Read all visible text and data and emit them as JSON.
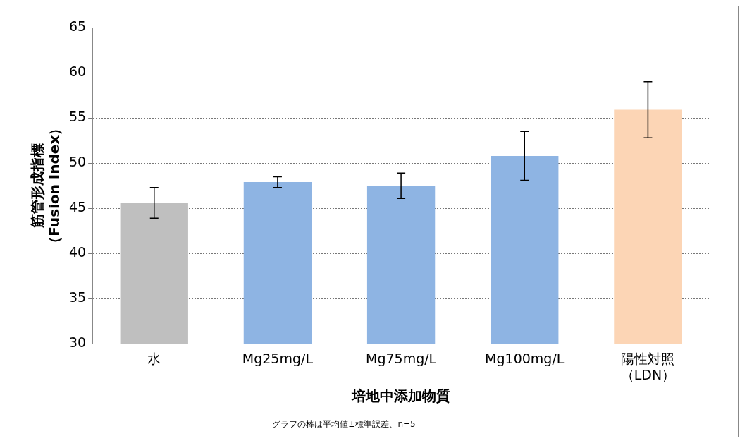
{
  "chart_data": {
    "type": "bar",
    "categories": [
      "水",
      "Mg25mg/L",
      "Mg75mg/L",
      "Mg100mg/L",
      "陽性対照（LDN）"
    ],
    "values": [
      45.6,
      47.9,
      47.5,
      50.8,
      55.9
    ],
    "colors": [
      "#bfbfbf",
      "#8eb4e3",
      "#8eb4e3",
      "#8eb4e3",
      "#fcd5b5"
    ],
    "errors": [
      1.7,
      0.6,
      1.4,
      2.7,
      3.1
    ],
    "ylim": [
      30,
      65
    ],
    "yticks": [
      30,
      35,
      40,
      45,
      50,
      55,
      60,
      65
    ],
    "grid": "y",
    "xlabel": "培地中添加物質",
    "ylabel": "筋管形成指標（Fusion Index）",
    "annotations": [
      "グラフの棒は平均値±標準誤差、n=5"
    ]
  }
}
